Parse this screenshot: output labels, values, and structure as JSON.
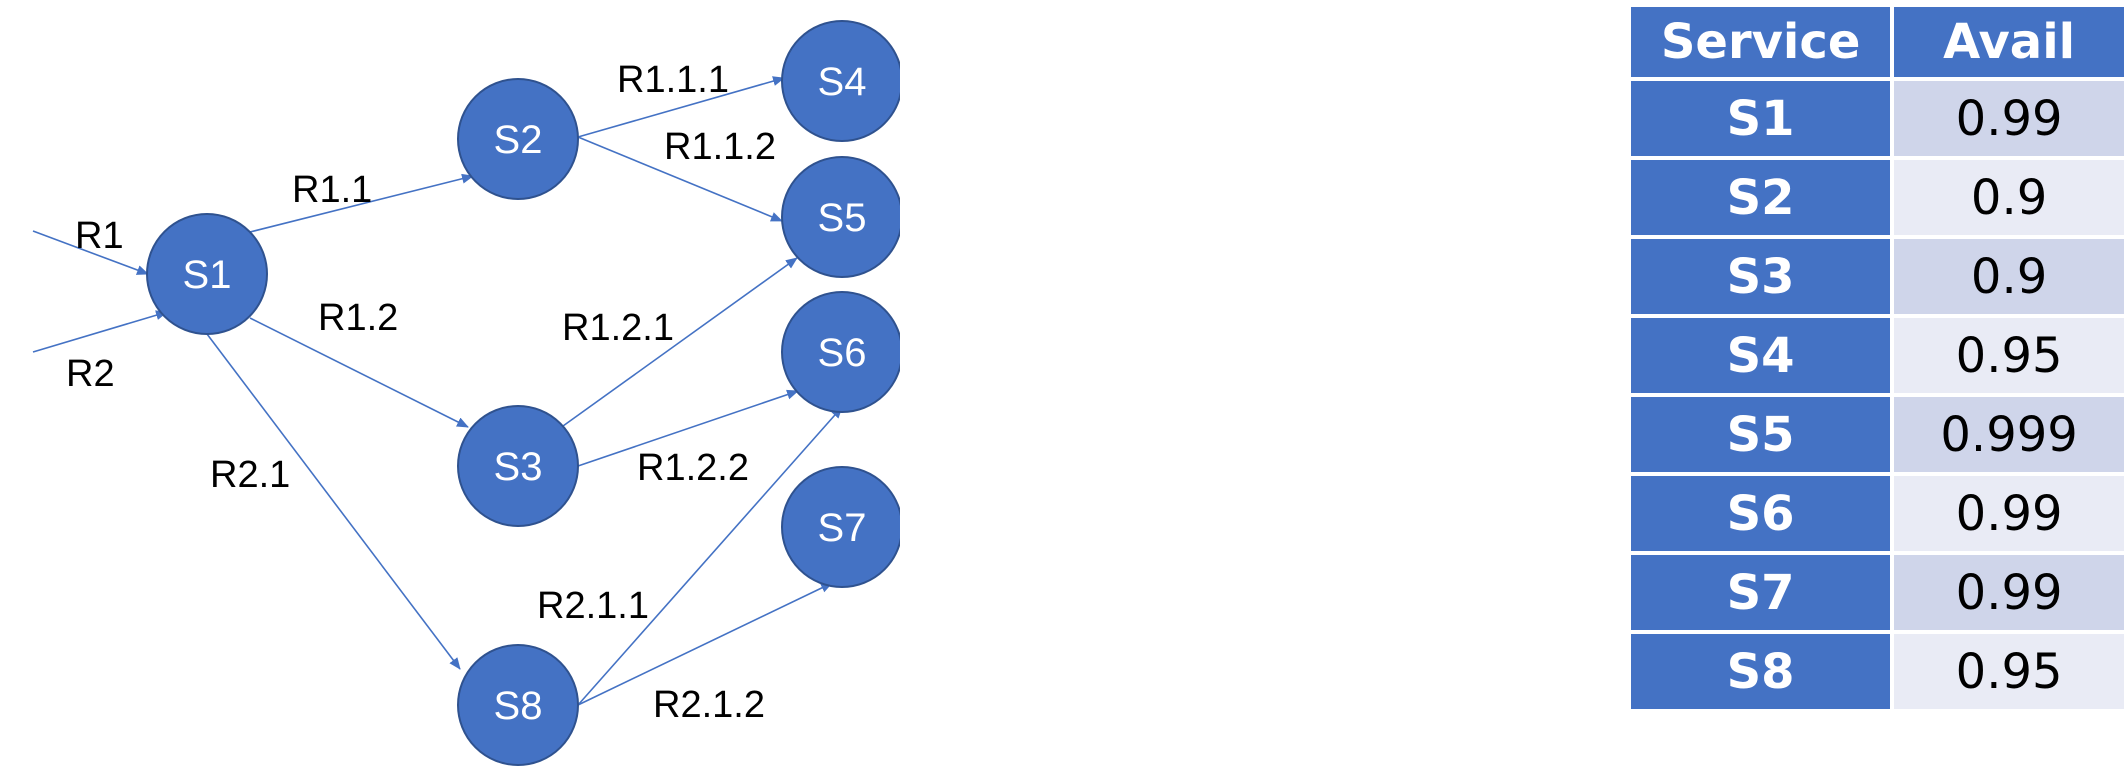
{
  "diagram": {
    "nodes": [
      {
        "id": "S1",
        "label": "S1"
      },
      {
        "id": "S2",
        "label": "S2"
      },
      {
        "id": "S3",
        "label": "S3"
      },
      {
        "id": "S4",
        "label": "S4"
      },
      {
        "id": "S5",
        "label": "S5"
      },
      {
        "id": "S6",
        "label": "S6"
      },
      {
        "id": "S7",
        "label": "S7"
      },
      {
        "id": "S8",
        "label": "S8"
      }
    ],
    "edges": [
      {
        "from": "",
        "to": "S1",
        "label": "R1"
      },
      {
        "from": "",
        "to": "S1",
        "label": "R2"
      },
      {
        "from": "S1",
        "to": "S2",
        "label": "R1.1"
      },
      {
        "from": "S1",
        "to": "S3",
        "label": "R1.2"
      },
      {
        "from": "S1",
        "to": "S8",
        "label": "R2.1"
      },
      {
        "from": "S2",
        "to": "S4",
        "label": "R1.1.1"
      },
      {
        "from": "S2",
        "to": "S5",
        "label": "R1.1.2"
      },
      {
        "from": "S3",
        "to": "S5",
        "label": "R1.2.1"
      },
      {
        "from": "S3",
        "to": "S6",
        "label": "R1.2.2"
      },
      {
        "from": "S8",
        "to": "S6",
        "label": "R2.1.1"
      },
      {
        "from": "S8",
        "to": "S7",
        "label": "R2.1.2"
      }
    ],
    "colors": {
      "node_fill": "#4472c4",
      "node_stroke": "#2f528f",
      "edge": "#4472c4"
    }
  },
  "table": {
    "headers": [
      "Service",
      "Avail"
    ],
    "rows": [
      {
        "service": "S1",
        "avail": "0.99"
      },
      {
        "service": "S2",
        "avail": "0.9"
      },
      {
        "service": "S3",
        "avail": "0.9"
      },
      {
        "service": "S4",
        "avail": "0.95"
      },
      {
        "service": "S5",
        "avail": "0.999"
      },
      {
        "service": "S6",
        "avail": "0.99"
      },
      {
        "service": "S7",
        "avail": "0.99"
      },
      {
        "service": "S8",
        "avail": "0.95"
      }
    ],
    "colors": {
      "header": "#4472c4",
      "service_cell": "#4472c4",
      "avail_dark": "#cfd5ea",
      "avail_light": "#e9ebf5"
    }
  }
}
